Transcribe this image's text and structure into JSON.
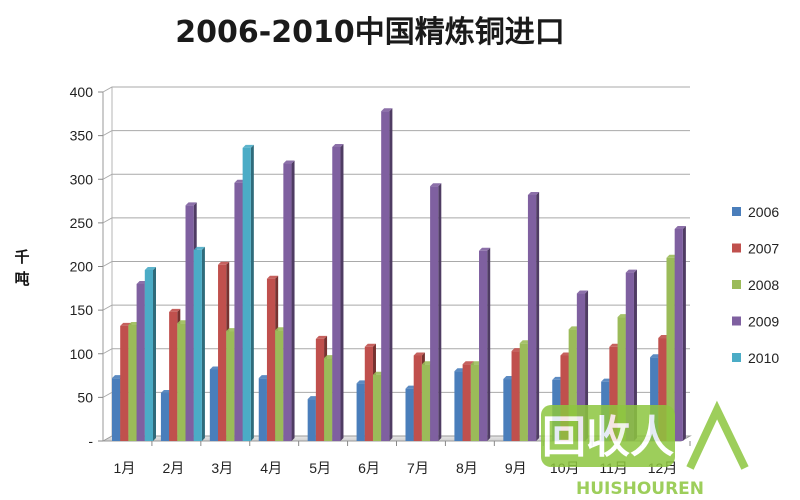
{
  "chart_data": {
    "type": "bar",
    "title": "2006-2010中国精炼铜进口",
    "ylabel": "千吨",
    "xlabel": "",
    "ylim": [
      0,
      400
    ],
    "yticks": [
      "-",
      "50",
      "100",
      "150",
      "200",
      "250",
      "300",
      "350",
      "400"
    ],
    "grid": "horizontal",
    "legend_position": "right",
    "categories": [
      "1月",
      "2月",
      "3月",
      "4月",
      "5月",
      "6月",
      "7月",
      "8月",
      "9月",
      "10月",
      "11月",
      "12月"
    ],
    "series": [
      {
        "name": "2006",
        "color": "#4a7ebb",
        "values": [
          72,
          55,
          82,
          72,
          48,
          66,
          60,
          80,
          71,
          70,
          68,
          96
        ]
      },
      {
        "name": "2007",
        "color": "#c0504d",
        "values": [
          132,
          148,
          202,
          186,
          117,
          108,
          98,
          88,
          103,
          98,
          108,
          118
        ]
      },
      {
        "name": "2008",
        "color": "#9bbb59",
        "values": [
          133,
          135,
          126,
          127,
          95,
          76,
          88,
          88,
          112,
          128,
          142,
          210
        ]
      },
      {
        "name": "2009",
        "color": "#7f60a0",
        "values": [
          180,
          270,
          296,
          318,
          337,
          378,
          292,
          218,
          282,
          169,
          193,
          243
        ]
      },
      {
        "name": "2010",
        "color": "#4bacc6",
        "values": [
          196,
          219,
          336,
          null,
          null,
          null,
          null,
          null,
          null,
          null,
          null,
          null
        ]
      }
    ]
  },
  "watermark": {
    "text": "回收人",
    "subtext": "HUISHOUREN"
  }
}
